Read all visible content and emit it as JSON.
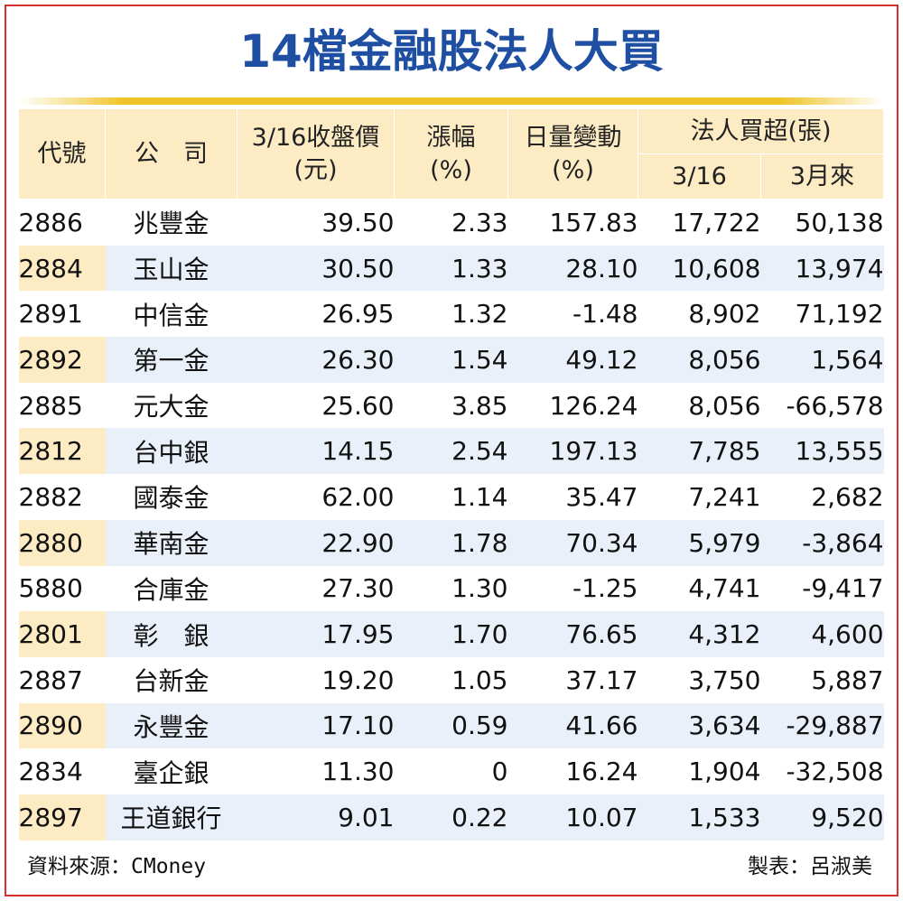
{
  "title": "14檔金融股法人大買",
  "headers": {
    "code": "代號",
    "company": "公　司",
    "price_line1": "3/16收盤價",
    "price_line2": "(元)",
    "change_line1": "漲幅",
    "change_line2": "(%)",
    "volume_line1": "日量變動",
    "volume_line2": "(%)",
    "net_buy_group": "法人買超(張)",
    "net_buy_day": "3/16",
    "net_buy_month": "3月來"
  },
  "rows": [
    {
      "code": "2886",
      "name": "兆豐金",
      "price": "39.50",
      "change": "2.33",
      "volume": "157.83",
      "day": "17,722",
      "month": "50,138"
    },
    {
      "code": "2884",
      "name": "玉山金",
      "price": "30.50",
      "change": "1.33",
      "volume": "28.10",
      "day": "10,608",
      "month": "13,974"
    },
    {
      "code": "2891",
      "name": "中信金",
      "price": "26.95",
      "change": "1.32",
      "volume": "-1.48",
      "day": "8,902",
      "month": "71,192"
    },
    {
      "code": "2892",
      "name": "第一金",
      "price": "26.30",
      "change": "1.54",
      "volume": "49.12",
      "day": "8,056",
      "month": "1,564"
    },
    {
      "code": "2885",
      "name": "元大金",
      "price": "25.60",
      "change": "3.85",
      "volume": "126.24",
      "day": "8,056",
      "month": "-66,578"
    },
    {
      "code": "2812",
      "name": "台中銀",
      "price": "14.15",
      "change": "2.54",
      "volume": "197.13",
      "day": "7,785",
      "month": "13,555"
    },
    {
      "code": "2882",
      "name": "國泰金",
      "price": "62.00",
      "change": "1.14",
      "volume": "35.47",
      "day": "7,241",
      "month": "2,682"
    },
    {
      "code": "2880",
      "name": "華南金",
      "price": "22.90",
      "change": "1.78",
      "volume": "70.34",
      "day": "5,979",
      "month": "-3,864"
    },
    {
      "code": "5880",
      "name": "合庫金",
      "price": "27.30",
      "change": "1.30",
      "volume": "-1.25",
      "day": "4,741",
      "month": "-9,417"
    },
    {
      "code": "2801",
      "name": "彰　銀",
      "price": "17.95",
      "change": "1.70",
      "volume": "76.65",
      "day": "4,312",
      "month": "4,600"
    },
    {
      "code": "2887",
      "name": "台新金",
      "price": "19.20",
      "change": "1.05",
      "volume": "37.17",
      "day": "3,750",
      "month": "5,887"
    },
    {
      "code": "2890",
      "name": "永豐金",
      "price": "17.10",
      "change": "0.59",
      "volume": "41.66",
      "day": "3,634",
      "month": "-29,887"
    },
    {
      "code": "2834",
      "name": "臺企銀",
      "price": "11.30",
      "change": "0",
      "volume": "16.24",
      "day": "1,904",
      "month": "-32,508"
    },
    {
      "code": "2897",
      "name": "王道銀行",
      "price": "9.01",
      "change": "0.22",
      "volume": "10.07",
      "day": "1,533",
      "month": "9,520"
    }
  ],
  "footer": {
    "source": "資料來源：CMoney",
    "credit": "製表：呂淑美"
  },
  "colors": {
    "title": "#1f4fa3",
    "border": "#d9302c",
    "gold_bar": "#f0c428",
    "header_bg": "#fcebc3",
    "alt_row_bg": "#eaf0f9"
  }
}
